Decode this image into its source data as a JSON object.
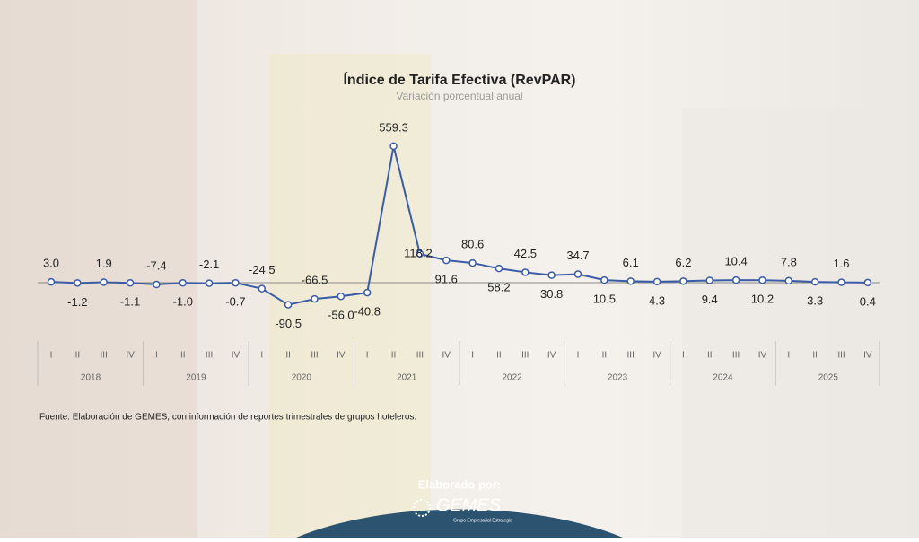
{
  "chart_data": {
    "type": "line",
    "title": "Índice de Tarifa Efectiva (RevPAR)",
    "subtitle": "Variación porcentual anual",
    "categories": [
      "I",
      "II",
      "III",
      "IV",
      "I",
      "II",
      "III",
      "IV",
      "I",
      "II",
      "III",
      "IV",
      "I",
      "II",
      "III",
      "IV",
      "I",
      "II",
      "III",
      "IV",
      "I",
      "II",
      "III",
      "IV",
      "I",
      "II",
      "III",
      "IV",
      "I",
      "II",
      "III",
      "IV"
    ],
    "years": [
      "2018",
      "2019",
      "2020",
      "2021",
      "2022",
      "2023",
      "2024",
      "2025"
    ],
    "series": [
      {
        "name": "RevPAR",
        "color": "#3a5ca6",
        "values": [
          3.0,
          -1.2,
          1.9,
          -1.1,
          -7.4,
          -1.0,
          -2.1,
          -0.7,
          -24.5,
          -90.5,
          -66.5,
          -56.0,
          -40.8,
          559.3,
          118.2,
          91.6,
          80.6,
          58.2,
          42.5,
          30.8,
          34.7,
          10.5,
          6.1,
          4.3,
          6.2,
          9.4,
          10.4,
          10.2,
          7.8,
          3.3,
          1.6,
          0.4
        ],
        "value_labels": [
          "3.0",
          "-1.2",
          "1.9",
          "-1.1",
          "-7.4",
          "-1.0",
          "-2.1",
          "-0.7",
          "-24.5",
          "-90.5",
          "-66.5",
          "-56.0",
          "-40.8",
          "559.3",
          "118.2",
          "91.6",
          "80.6",
          "58.2",
          "42.5",
          "30.8",
          "34.7",
          "10.5",
          "6.1",
          "4.3",
          "6.2",
          "9.4",
          "10.4",
          "10.2",
          "7.8",
          "3.3",
          "1.6",
          "0.4"
        ]
      }
    ],
    "ylim": [
      -100,
      600
    ],
    "source": "Fuente: Elaboración de GEMES, con información de reportes trimestrales de grupos hoteleros.",
    "footer": {
      "label": "Elaborado por:",
      "logo": "GEMES",
      "logo_sub": "Grupo Empresarial Estrategia"
    }
  }
}
